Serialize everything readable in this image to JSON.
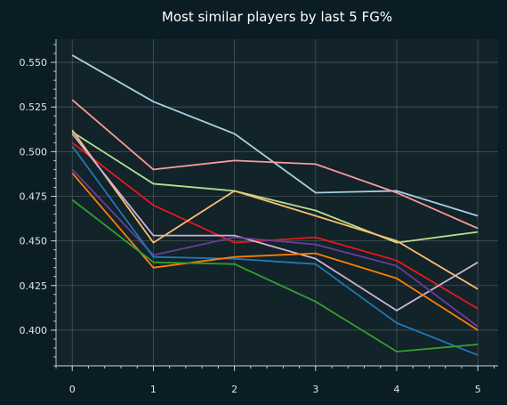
{
  "chart_data": {
    "type": "line",
    "title": "Most similar players by last 5 FG%",
    "xlabel": "",
    "ylabel": "",
    "x": [
      0,
      1,
      2,
      3,
      4,
      5
    ],
    "xlim": [
      -0.2,
      5.25
    ],
    "ylim": [
      0.38,
      0.563
    ],
    "x_ticks": [
      "0",
      "1",
      "2",
      "3",
      "4",
      "5"
    ],
    "y_ticks": [
      "0.400",
      "0.425",
      "0.450",
      "0.475",
      "0.500",
      "0.525",
      "0.550"
    ],
    "grid": true,
    "background": "#12232a",
    "series": [
      {
        "color": "#a6cee3",
        "values": [
          0.554,
          0.528,
          0.51,
          0.477,
          0.478,
          0.464
        ]
      },
      {
        "color": "#fb9a99",
        "values": [
          0.529,
          0.49,
          0.495,
          0.493,
          0.477,
          0.457
        ]
      },
      {
        "color": "#b2df8a",
        "values": [
          0.511,
          0.482,
          0.478,
          0.467,
          0.449,
          0.455
        ]
      },
      {
        "color": "#e31a1c",
        "values": [
          0.505,
          0.47,
          0.449,
          0.452,
          0.439,
          0.412
        ]
      },
      {
        "color": "#fdbf6f",
        "values": [
          0.512,
          0.449,
          0.478,
          0.464,
          0.45,
          0.423
        ]
      },
      {
        "color": "#cab2d6",
        "values": [
          0.51,
          0.453,
          0.453,
          0.44,
          0.411,
          0.438
        ]
      },
      {
        "color": "#6a3d9a",
        "values": [
          0.49,
          0.442,
          0.452,
          0.448,
          0.436,
          0.402
        ]
      },
      {
        "color": "#1f78b4",
        "values": [
          0.503,
          0.441,
          0.44,
          0.437,
          0.404,
          0.386
        ]
      },
      {
        "color": "#ff7f00",
        "values": [
          0.488,
          0.435,
          0.441,
          0.443,
          0.429,
          0.4
        ]
      },
      {
        "color": "#33a02c",
        "values": [
          0.473,
          0.438,
          0.437,
          0.416,
          0.388,
          0.392
        ]
      }
    ]
  }
}
